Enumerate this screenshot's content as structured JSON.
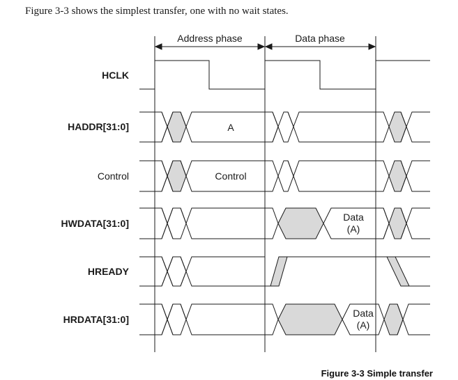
{
  "intro": "Figure 3-3 shows the simplest transfer, one with no wait states.",
  "caption": "Figure 3-3 Simple transfer",
  "phases": {
    "address": "Address phase",
    "data": "Data phase"
  },
  "signals": {
    "hclk": "HCLK",
    "haddr": "HADDR[31:0]",
    "control": "Control",
    "hwdata": "HWDATA[31:0]",
    "hready": "HREADY",
    "hrdata": "HRDATA[31:0]"
  },
  "values": {
    "haddr_a": "A",
    "control_val": "Control",
    "hwdata_line1": "Data",
    "hwdata_line2": "(A)",
    "hrdata_line1": "Data",
    "hrdata_line2": "(A)"
  },
  "colors": {
    "line": "#1a1a1a",
    "fill": "#d9d9d9"
  }
}
